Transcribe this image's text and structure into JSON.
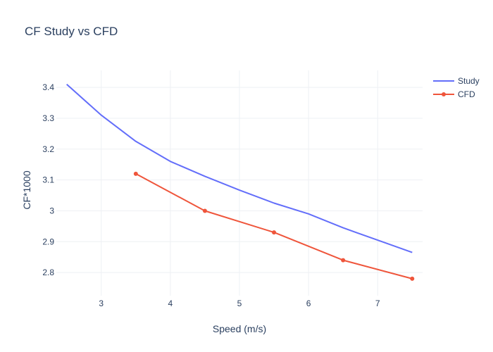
{
  "chart_data": {
    "type": "line",
    "title": "CF Study vs CFD",
    "xlabel": "Speed (m/s)",
    "ylabel": "CF*1000",
    "xlim": [
      2.35,
      7.65
    ],
    "ylim": [
      2.725,
      3.455
    ],
    "xticks": [
      3,
      4,
      5,
      6,
      7
    ],
    "xtick_labels": [
      "3",
      "4",
      "5",
      "6",
      "7"
    ],
    "yticks": [
      2.8,
      2.9,
      3.0,
      3.1,
      3.2,
      3.3,
      3.4
    ],
    "ytick_labels": [
      "2.8",
      "2.9",
      "3",
      "3.1",
      "3.2",
      "3.3",
      "3.4"
    ],
    "grid": true,
    "legend_position": "top-right",
    "series": [
      {
        "name": "Study",
        "mode": "lines",
        "color": "#636efa",
        "x": [
          2.5,
          3.0,
          3.5,
          4.0,
          4.5,
          5.0,
          5.5,
          6.0,
          6.5,
          7.0,
          7.5
        ],
        "y": [
          3.41,
          3.31,
          3.225,
          3.16,
          3.112,
          3.067,
          3.025,
          2.99,
          2.945,
          2.905,
          2.865
        ]
      },
      {
        "name": "CFD",
        "mode": "lines+markers",
        "color": "#ef553b",
        "x": [
          3.5,
          4.5,
          5.5,
          6.5,
          7.5
        ],
        "y": [
          3.12,
          3.0,
          2.93,
          2.84,
          2.78
        ]
      }
    ]
  }
}
